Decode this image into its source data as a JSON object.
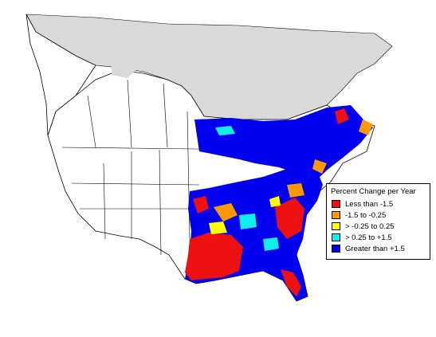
{
  "legend": {
    "title": "Percent Change per Year",
    "items": [
      {
        "label": "Less than -1.5",
        "color": "#ee1111"
      },
      {
        "label": "-1.5 to -0.25",
        "color": "#ff9900"
      },
      {
        "label": "> -0.25 to 0.25",
        "color": "#ffff00"
      },
      {
        "label": "> 0.25 to +1.5",
        "color": "#11eeee"
      },
      {
        "label": "Greater than +1.5",
        "color": "#0000ee"
      }
    ]
  },
  "colors": {
    "no_data": "#d9d9d9",
    "land": "#ffffff",
    "outline": "#000000"
  }
}
